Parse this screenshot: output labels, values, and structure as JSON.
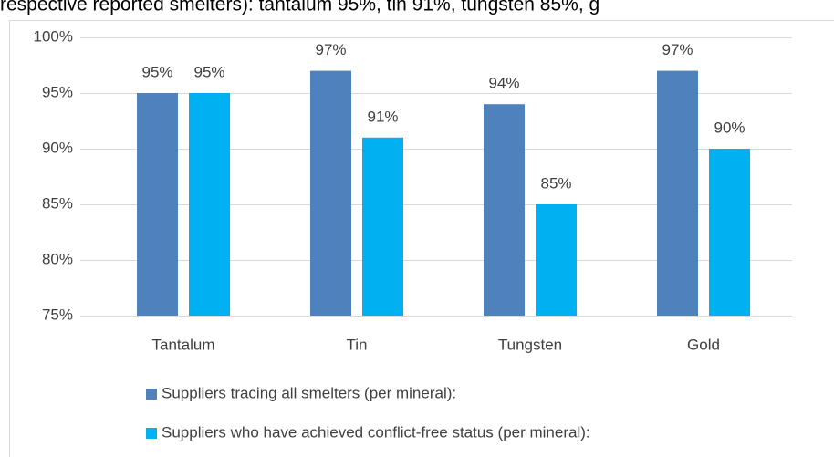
{
  "context_text": "respective reported smelters): tantalum 95%, tin 91%, tungsten 85%, g",
  "chart_data": {
    "type": "bar",
    "categories": [
      "Tantalum",
      "Tin",
      "Tungsten",
      "Gold"
    ],
    "series": [
      {
        "name": "Suppliers tracing all smelters (per mineral):",
        "color": "#4f81bd",
        "values": [
          95,
          97,
          94,
          97
        ],
        "value_labels": [
          "95%",
          "97%",
          "94%",
          "97%"
        ]
      },
      {
        "name": "Suppliers who have achieved conflict-free status (per mineral):",
        "color": "#00b0f0",
        "values": [
          95,
          91,
          85,
          90
        ],
        "value_labels": [
          "95%",
          "91%",
          "85%",
          "90%"
        ]
      }
    ],
    "ylim": [
      75,
      100
    ],
    "yticks": [
      {
        "value": 75,
        "label": "75%"
      },
      {
        "value": 80,
        "label": "80%"
      },
      {
        "value": 85,
        "label": "85%"
      },
      {
        "value": 90,
        "label": "90%"
      },
      {
        "value": 95,
        "label": "95%"
      },
      {
        "value": 100,
        "label": "100%"
      }
    ],
    "grid": true,
    "legend": "bottom"
  }
}
